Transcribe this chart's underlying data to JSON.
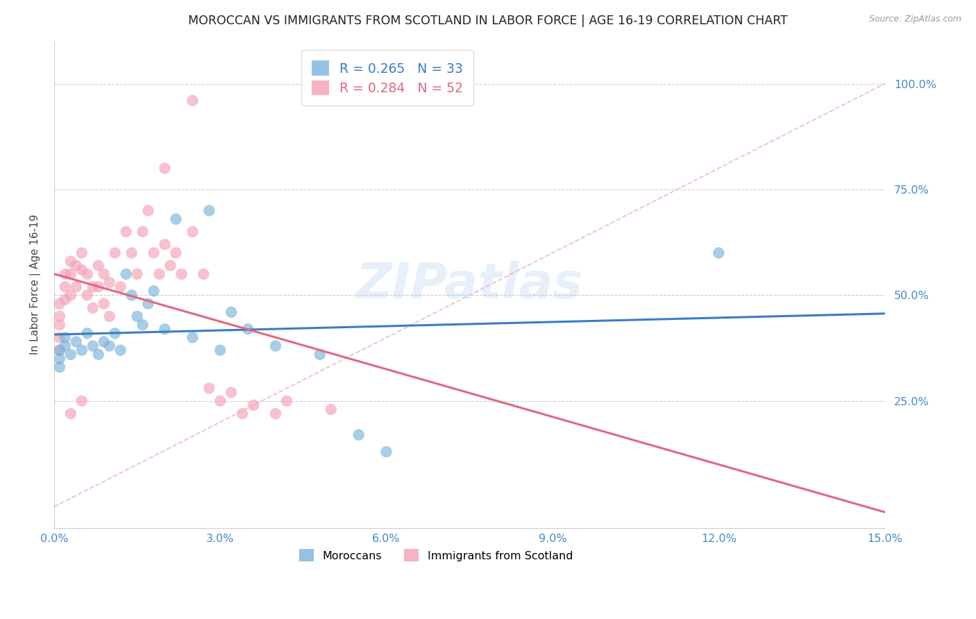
{
  "title": "MOROCCAN VS IMMIGRANTS FROM SCOTLAND IN LABOR FORCE | AGE 16-19 CORRELATION CHART",
  "source": "Source: ZipAtlas.com",
  "ylabel": "In Labor Force | Age 16-19",
  "xlim": [
    0.0,
    0.15
  ],
  "ylim": [
    -0.05,
    1.1
  ],
  "plot_ylim": [
    0.0,
    1.0
  ],
  "xticks": [
    0.0,
    0.03,
    0.06,
    0.09,
    0.12,
    0.15
  ],
  "xtick_labels": [
    "0.0%",
    "3.0%",
    "6.0%",
    "9.0%",
    "12.0%",
    "15.0%"
  ],
  "ytick_vals": [
    0.25,
    0.5,
    0.75,
    1.0
  ],
  "ytick_labels": [
    "25.0%",
    "50.0%",
    "75.0%",
    "100.0%"
  ],
  "blue_color": "#7AB3D9",
  "pink_color": "#F4A0B5",
  "blue_line_color": "#3A7CC9",
  "pink_line_color": "#E06880",
  "diag_line_color": "#E8B0BC",
  "blue_R": 0.265,
  "blue_N": 33,
  "pink_R": 0.284,
  "pink_N": 52,
  "axis_tick_color": "#4488CC",
  "title_color": "#222222",
  "grid_color": "#CCCCCC",
  "watermark": "ZIPatlas",
  "source_text": "Source: ZipAtlas.com",
  "blue_dots_x": [
    0.001,
    0.001,
    0.001,
    0.002,
    0.002,
    0.003,
    0.004,
    0.005,
    0.006,
    0.007,
    0.008,
    0.009,
    0.01,
    0.011,
    0.012,
    0.013,
    0.014,
    0.015,
    0.016,
    0.017,
    0.018,
    0.02,
    0.022,
    0.025,
    0.028,
    0.03,
    0.032,
    0.035,
    0.04,
    0.048,
    0.055,
    0.06,
    0.12
  ],
  "blue_dots_y": [
    0.37,
    0.35,
    0.33,
    0.38,
    0.4,
    0.36,
    0.39,
    0.37,
    0.41,
    0.38,
    0.36,
    0.39,
    0.38,
    0.41,
    0.37,
    0.55,
    0.5,
    0.45,
    0.43,
    0.48,
    0.51,
    0.42,
    0.68,
    0.4,
    0.7,
    0.37,
    0.46,
    0.42,
    0.38,
    0.36,
    0.17,
    0.13,
    0.6
  ],
  "pink_dots_x": [
    0.001,
    0.001,
    0.001,
    0.001,
    0.001,
    0.002,
    0.002,
    0.002,
    0.003,
    0.003,
    0.003,
    0.004,
    0.004,
    0.005,
    0.005,
    0.006,
    0.006,
    0.007,
    0.007,
    0.008,
    0.008,
    0.009,
    0.009,
    0.01,
    0.01,
    0.011,
    0.012,
    0.013,
    0.014,
    0.015,
    0.016,
    0.017,
    0.018,
    0.019,
    0.02,
    0.021,
    0.022,
    0.023,
    0.025,
    0.027,
    0.028,
    0.03,
    0.032,
    0.034,
    0.036,
    0.04,
    0.042,
    0.05,
    0.02,
    0.025,
    0.003,
    0.005
  ],
  "pink_dots_y": [
    0.48,
    0.45,
    0.43,
    0.4,
    0.37,
    0.55,
    0.52,
    0.49,
    0.58,
    0.55,
    0.5,
    0.57,
    0.52,
    0.6,
    0.56,
    0.55,
    0.5,
    0.52,
    0.47,
    0.57,
    0.52,
    0.55,
    0.48,
    0.53,
    0.45,
    0.6,
    0.52,
    0.65,
    0.6,
    0.55,
    0.65,
    0.7,
    0.6,
    0.55,
    0.62,
    0.57,
    0.6,
    0.55,
    0.65,
    0.55,
    0.28,
    0.25,
    0.27,
    0.22,
    0.24,
    0.22,
    0.25,
    0.23,
    0.8,
    0.96,
    0.22,
    0.25
  ]
}
